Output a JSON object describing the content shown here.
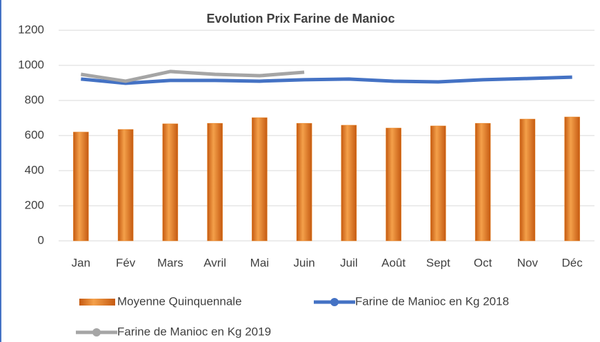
{
  "chart_data": {
    "type": "bar_line",
    "title": "Evolution Prix Farine de Manioc",
    "categories": [
      "Jan",
      "Fév",
      "Mars",
      "Avril",
      "Mai",
      "Juin",
      "Juil",
      "Août",
      "Sept",
      "Oct",
      "Nov",
      "Déc"
    ],
    "series": [
      {
        "name": "Moyenne Quinquennale",
        "color": "#e8801e",
        "kind": "bar",
        "values": [
          620,
          635,
          667,
          670,
          702,
          670,
          659,
          643,
          655,
          670,
          694,
          706
        ]
      },
      {
        "name": "Farine de Manioc en Kg 2018",
        "color": "#4472c4",
        "kind": "line",
        "values": [
          922,
          898,
          914,
          914,
          910,
          918,
          922,
          910,
          906,
          918,
          925,
          933
        ]
      },
      {
        "name": "Farine de Manioc en Kg 2019",
        "color": "#a5a5a5",
        "kind": "line",
        "values": [
          949,
          910,
          965,
          949,
          941,
          961,
          null,
          null,
          null,
          null,
          null,
          null
        ]
      }
    ],
    "ylim": [
      0,
      1200
    ],
    "yticks": [
      0,
      200,
      400,
      600,
      800,
      1000,
      1200
    ],
    "grid": true
  }
}
